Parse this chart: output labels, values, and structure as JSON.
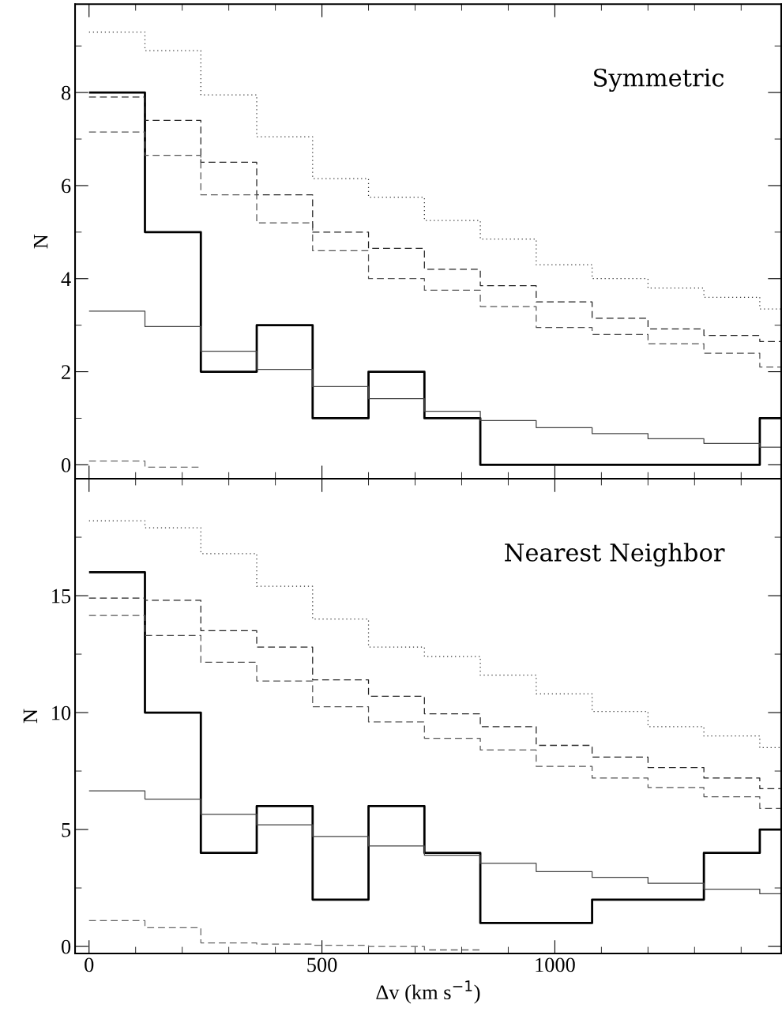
{
  "chart_data": [
    {
      "type": "histogram",
      "annotations": [
        "Symmetric"
      ],
      "ylabel": "N",
      "bins": [
        0,
        120,
        240,
        360,
        480,
        600,
        720,
        840,
        960,
        1080,
        1200,
        1320,
        1440,
        1486
      ],
      "xlim": [
        -30,
        1486
      ],
      "xticks": [
        0,
        500,
        1000
      ],
      "ylim": [
        -0.3,
        9.9
      ],
      "yticks": [
        0,
        2,
        4,
        6,
        8
      ],
      "tick_labels": "y",
      "series": [
        {
          "color": "#000000",
          "line_style": "solid",
          "values": [
            8,
            5,
            2,
            3,
            1,
            2,
            1,
            0,
            0,
            0,
            0,
            0,
            1
          ]
        },
        {
          "color": "#444444",
          "line_style": "solid",
          "values": [
            3.3,
            2.97,
            2.44,
            2.05,
            1.68,
            1.42,
            1.15,
            0.95,
            0.8,
            0.67,
            0.56,
            0.46,
            0.38
          ]
        },
        {
          "color": "#333333",
          "line_style": "dotted",
          "values": [
            9.3,
            8.9,
            7.95,
            7.05,
            6.15,
            5.75,
            5.25,
            4.85,
            4.3,
            4.0,
            3.8,
            3.6,
            3.35
          ]
        },
        {
          "color": "#222222",
          "line_style": "dashed",
          "values": [
            7.9,
            7.4,
            6.5,
            5.8,
            5.0,
            4.65,
            4.2,
            3.85,
            3.5,
            3.15,
            2.92,
            2.78,
            2.65
          ]
        },
        {
          "color": "#555555",
          "line_style": "dashed",
          "values": [
            7.15,
            6.65,
            5.8,
            5.2,
            4.6,
            4.0,
            3.75,
            3.4,
            2.95,
            2.8,
            2.6,
            2.4,
            2.1
          ]
        },
        {
          "color": "#666666",
          "line_style": "dashed",
          "bins": [
            0,
            120,
            240
          ],
          "values": [
            0.08,
            -0.05
          ]
        }
      ]
    },
    {
      "type": "histogram",
      "annotations": [
        "Nearest Neighbor"
      ],
      "ylabel": "N",
      "xlabel": "Δv (km s$^{−1}$)",
      "bins": [
        0,
        120,
        240,
        360,
        480,
        600,
        720,
        840,
        960,
        1080,
        1200,
        1320,
        1440,
        1486
      ],
      "xlim": [
        -30,
        1486
      ],
      "xticks": [
        0,
        500,
        1000
      ],
      "ylim": [
        -0.3,
        20
      ],
      "yticks": [
        0,
        5,
        10,
        15
      ],
      "series": [
        {
          "color": "#000000",
          "line_style": "solid",
          "values": [
            16,
            10,
            4,
            6,
            2,
            6,
            4,
            1,
            1,
            2,
            2,
            4,
            5
          ]
        },
        {
          "color": "#444444",
          "line_style": "solid",
          "values": [
            6.65,
            6.3,
            5.65,
            5.2,
            4.7,
            4.3,
            3.9,
            3.55,
            3.2,
            2.95,
            2.7,
            2.45,
            2.25
          ]
        },
        {
          "color": "#333333",
          "line_style": "dotted",
          "values": [
            18.2,
            17.9,
            16.8,
            15.4,
            14.0,
            12.8,
            12.4,
            11.6,
            10.8,
            10.05,
            9.4,
            9.0,
            8.5
          ]
        },
        {
          "color": "#222222",
          "line_style": "dashed",
          "values": [
            14.9,
            14.8,
            13.5,
            12.8,
            11.4,
            10.7,
            9.95,
            9.4,
            8.6,
            8.1,
            7.65,
            7.2,
            6.75
          ]
        },
        {
          "color": "#555555",
          "line_style": "dashed",
          "values": [
            14.15,
            13.3,
            12.15,
            11.35,
            10.25,
            9.6,
            8.9,
            8.4,
            7.7,
            7.2,
            6.8,
            6.4,
            5.9
          ]
        },
        {
          "color": "#666666",
          "line_style": "dashed",
          "bins": [
            0,
            120,
            240,
            360,
            480,
            600,
            720,
            840
          ],
          "values": [
            1.1,
            0.8,
            0.15,
            0.1,
            0.05,
            0.0,
            -0.15
          ]
        }
      ]
    }
  ]
}
